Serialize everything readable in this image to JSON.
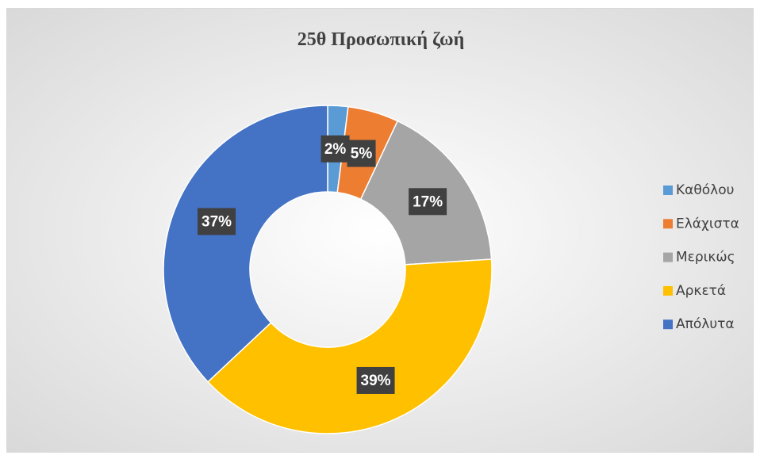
{
  "chart_data": {
    "type": "pie",
    "title": "25θ Προσωπική ζωή",
    "categories": [
      "Καθόλου",
      "Ελάχιστα",
      "Μερικώς",
      "Αρκετά",
      "Απόλυτα"
    ],
    "values": [
      2,
      5,
      17,
      39,
      37
    ],
    "value_labels": [
      "2%",
      "5%",
      "17%",
      "39%",
      "37%"
    ],
    "colors": [
      "#5b9bd5",
      "#ed7d31",
      "#a5a5a5",
      "#ffc000",
      "#4472c4"
    ],
    "legend": "right"
  }
}
